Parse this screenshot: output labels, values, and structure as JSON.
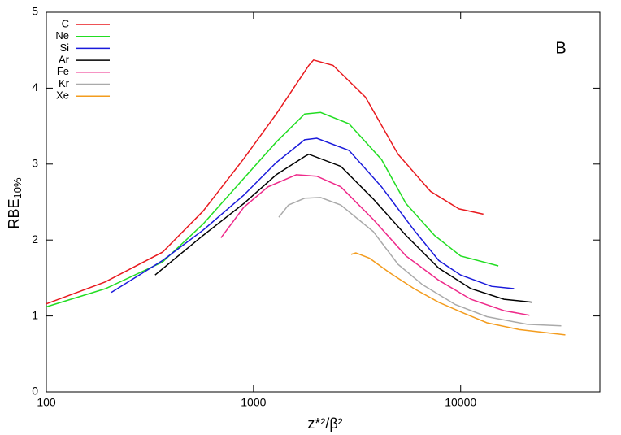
{
  "chart_data": {
    "type": "line",
    "x_label": "z*²/β²",
    "y_label": "RBE",
    "y_label_sub": "10%",
    "panel_label": "B",
    "log_x": true,
    "legend": "top-left",
    "xlim": [
      100,
      47000
    ],
    "xticks": [
      100,
      1000,
      10000
    ],
    "ylim": [
      0,
      5
    ],
    "yticks": [
      0,
      1,
      2,
      3,
      4,
      5
    ],
    "series": [
      {
        "name": "C",
        "color": "#e8191e",
        "x": [
          100,
          193,
          364,
          571,
          897,
          1288,
          1849,
          1950,
          2421,
          3475,
          4988,
          7160,
          9820,
          12880
        ],
        "values": [
          1.16,
          1.45,
          1.84,
          2.38,
          3.07,
          3.66,
          4.3,
          4.37,
          4.3,
          3.88,
          3.13,
          2.64,
          2.41,
          2.34
        ]
      },
      {
        "name": "Ne",
        "color": "#22dd22",
        "x": [
          100,
          193,
          364,
          571,
          897,
          1288,
          1766,
          2108,
          2893,
          4150,
          5450,
          7480,
          10000,
          15200
        ],
        "values": [
          1.12,
          1.36,
          1.71,
          2.21,
          2.81,
          3.29,
          3.66,
          3.68,
          3.53,
          3.06,
          2.48,
          2.06,
          1.79,
          1.66
        ]
      },
      {
        "name": "Si",
        "color": "#1a1adb",
        "x": [
          206,
          364,
          571,
          897,
          1288,
          1766,
          2020,
          2893,
          4150,
          5960,
          7840,
          10000,
          14100,
          18100
        ],
        "values": [
          1.31,
          1.73,
          2.13,
          2.59,
          3.02,
          3.32,
          3.34,
          3.18,
          2.7,
          2.13,
          1.73,
          1.54,
          1.39,
          1.36
        ]
      },
      {
        "name": "Ar",
        "color": "#000000",
        "x": [
          335,
          571,
          897,
          1288,
          1766,
          1849,
          2640,
          3790,
          5450,
          7840,
          11200,
          16200,
          22200
        ],
        "values": [
          1.54,
          2.06,
          2.48,
          2.86,
          3.1,
          3.13,
          2.97,
          2.54,
          2.06,
          1.63,
          1.36,
          1.22,
          1.18
        ]
      },
      {
        "name": "Fe",
        "color": "#ee2a8a",
        "x": [
          697,
          897,
          1175,
          1610,
          2020,
          2640,
          3790,
          5450,
          7840,
          11200,
          16200,
          21500
        ],
        "values": [
          2.03,
          2.43,
          2.7,
          2.86,
          2.84,
          2.7,
          2.27,
          1.79,
          1.47,
          1.22,
          1.07,
          1.01
        ]
      },
      {
        "name": "Kr",
        "color": "#aaaaaa",
        "x": [
          1325,
          1474,
          1766,
          2108,
          2640,
          3790,
          4988,
          6560,
          9430,
          13400,
          21000,
          30600
        ],
        "values": [
          2.3,
          2.46,
          2.55,
          2.56,
          2.46,
          2.11,
          1.68,
          1.41,
          1.15,
          0.99,
          0.89,
          0.87
        ]
      },
      {
        "name": "Xe",
        "color": "#f39c1e",
        "x": [
          2958,
          3120,
          3630,
          4540,
          5960,
          7840,
          10300,
          13400,
          19200,
          32000
        ],
        "values": [
          1.81,
          1.83,
          1.76,
          1.57,
          1.36,
          1.18,
          1.04,
          0.91,
          0.82,
          0.75
        ]
      }
    ]
  }
}
